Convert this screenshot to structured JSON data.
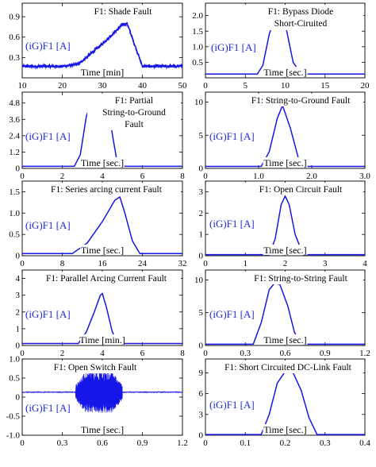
{
  "colors": {
    "line": "#1616e8",
    "ylabel": "#1f2bd6",
    "axis": "#000000",
    "background": "#ffffff"
  },
  "chart_data": [
    {
      "type": "line",
      "panel": 1,
      "title_lines": [
        "F1: Shade Fault"
      ],
      "ylabel": "(iG)F1 [A]",
      "xlabel": "Time [min]",
      "xlim": [
        10,
        50
      ],
      "ylim": [
        0,
        1.1
      ],
      "xticks": [
        "10",
        "20",
        "30",
        "40",
        "50"
      ],
      "yticks": [
        "0.3",
        "0.6",
        "0.9"
      ],
      "noisy": true,
      "noise_amplitude": 0.02,
      "x": [
        10,
        20,
        24,
        30,
        35,
        36.2,
        38,
        40,
        50
      ],
      "y": [
        0.17,
        0.17,
        0.2,
        0.5,
        0.78,
        0.8,
        0.5,
        0.17,
        0.17
      ]
    },
    {
      "type": "line",
      "panel": 2,
      "title_lines": [
        "F1: Bypass Diode",
        "Short-Ciruited"
      ],
      "ylabel": "(iG)F1 [A]",
      "xlabel": "Time [sec.]",
      "xlim": [
        0,
        20
      ],
      "ylim": [
        0,
        2.4
      ],
      "xticks": [
        "0",
        "5",
        "10",
        "15",
        "20"
      ],
      "yticks": [
        "0.5",
        "1.0",
        "1.5",
        "2.0"
      ],
      "noisy": false,
      "x": [
        0,
        6.5,
        7.2,
        8,
        9,
        9.5,
        10.2,
        11,
        12,
        20
      ],
      "y": [
        0.12,
        0.12,
        0.4,
        1.4,
        2.15,
        2.22,
        1.5,
        0.5,
        0.12,
        0.12
      ]
    },
    {
      "type": "line",
      "panel": 3,
      "title_lines": [
        "F1: Partial",
        "String-to-Ground",
        "Fault"
      ],
      "ylabel": "(iG)F1 [A]",
      "xlabel": "Time [sec.]",
      "xlim": [
        0,
        8
      ],
      "ylim": [
        0,
        5.6
      ],
      "xticks": [
        "0",
        "2",
        "4",
        "6",
        "8"
      ],
      "yticks": [
        "0",
        "1.2",
        "2.4",
        "3.6",
        "4.8"
      ],
      "noisy": false,
      "x": [
        0,
        2.6,
        2.9,
        3.2,
        3.4,
        3.5,
        4.2,
        4.3,
        4.5,
        4.7,
        5.0,
        8
      ],
      "y": [
        0.15,
        0.15,
        1.0,
        3.8,
        4.7,
        4.8,
        4.8,
        4.5,
        2.5,
        0.8,
        0.15,
        0.15
      ]
    },
    {
      "type": "line",
      "panel": 4,
      "title_lines": [
        "F1: String-to-Ground Fault"
      ],
      "ylabel": "(iG)F1 [A]",
      "xlabel": "Time [sec.]",
      "xlim": [
        0,
        3.0
      ],
      "ylim": [
        0,
        11.5
      ],
      "xticks": [
        "0",
        "1.0",
        "2.0",
        "3.0"
      ],
      "yticks": [
        "0",
        "5",
        "10"
      ],
      "noisy": false,
      "x": [
        0,
        1.05,
        1.2,
        1.35,
        1.45,
        1.6,
        1.75,
        1.9,
        3.0
      ],
      "y": [
        0.3,
        0.3,
        2.5,
        7.5,
        9.5,
        6.0,
        1.5,
        0.3,
        0.3
      ]
    },
    {
      "type": "line",
      "panel": 5,
      "title_lines": [
        "F1: Series arcing current Fault"
      ],
      "ylabel": "(iG)F1 [A]",
      "xlabel": "Time [sec.]",
      "xlim": [
        0,
        32
      ],
      "ylim": [
        0,
        1.75
      ],
      "xticks": [
        "0",
        "8",
        "16",
        "24",
        "32"
      ],
      "yticks": [
        "0",
        "0.5",
        "1.0",
        "1.5"
      ],
      "noisy": false,
      "x": [
        0,
        10,
        13,
        16,
        18.5,
        19.5,
        20.5,
        22,
        23.5,
        32
      ],
      "y": [
        0.05,
        0.05,
        0.3,
        0.8,
        1.3,
        1.38,
        1.0,
        0.35,
        0.05,
        0.05
      ]
    },
    {
      "type": "line",
      "panel": 6,
      "title_lines": [
        "F1: Open Circuit Fault"
      ],
      "ylabel": "(iG)F1 [A]",
      "xlabel": "Time [sec.]",
      "xlim": [
        0,
        4
      ],
      "ylim": [
        0,
        3.5
      ],
      "xticks": [
        "0",
        "1",
        "2",
        "3",
        "4"
      ],
      "yticks": [
        "0",
        "1",
        "2",
        "3"
      ],
      "noisy": false,
      "x": [
        0,
        1.6,
        1.75,
        1.9,
        2.0,
        2.1,
        2.25,
        2.45,
        4
      ],
      "y": [
        0.05,
        0.05,
        0.8,
        2.4,
        2.8,
        2.4,
        1.0,
        0.05,
        0.05
      ]
    },
    {
      "type": "line",
      "panel": 7,
      "title_lines": [
        "F1: Parallel Arcing Current Fault"
      ],
      "ylabel": "(iG)F1 [A]",
      "xlabel": "Time [min.]",
      "xlim": [
        0,
        8
      ],
      "ylim": [
        0,
        4.5
      ],
      "xticks": [
        "0",
        "2",
        "4",
        "6",
        "8"
      ],
      "yticks": [
        "0",
        "1",
        "2",
        "3",
        "4"
      ],
      "noisy": false,
      "x": [
        0,
        2.8,
        3.2,
        3.6,
        3.9,
        4.0,
        4.2,
        4.5,
        4.8,
        8
      ],
      "y": [
        0.12,
        0.12,
        0.8,
        2.0,
        3.0,
        3.1,
        2.3,
        0.8,
        0.12,
        0.12
      ]
    },
    {
      "type": "line",
      "panel": 8,
      "title_lines": [
        "F1: String-to-String Fault"
      ],
      "ylabel": "(iG)F1 [A]",
      "xlabel": "Time [sec.]",
      "xlim": [
        0,
        1.2
      ],
      "ylim": [
        0,
        11.5
      ],
      "xticks": [
        "0",
        "0.3",
        "0.6",
        "0.9",
        "1.2"
      ],
      "yticks": [
        "0",
        "5",
        "10"
      ],
      "noisy": false,
      "x": [
        0,
        0.36,
        0.42,
        0.48,
        0.52,
        0.56,
        0.62,
        0.67,
        0.72,
        1.2
      ],
      "y": [
        0.2,
        0.2,
        3.5,
        8.5,
        9.5,
        9.3,
        6.0,
        2.0,
        0.2,
        0.2
      ]
    },
    {
      "type": "line",
      "panel": 9,
      "title_lines": [
        "F1: Open Switch Fault"
      ],
      "ylabel": "(iG)F1 [A]",
      "xlabel": "Time [sec.]",
      "xlim": [
        0,
        1.2
      ],
      "ylim": [
        -1.0,
        1.0
      ],
      "xticks": [
        "0",
        "0.3",
        "0.6",
        "0.9",
        "1.2"
      ],
      "yticks": [
        "-1.0",
        "-0.5",
        "0",
        "0.5",
        "1.0"
      ],
      "noisy": false,
      "baseline": 0.13,
      "oscillation": {
        "start": 0.4,
        "end": 0.75,
        "amplitude": 0.55
      },
      "x": [
        0,
        0.4,
        0.75,
        1.2
      ],
      "y": [
        0.13,
        0.13,
        0.13,
        0.13
      ]
    },
    {
      "type": "line",
      "panel": 10,
      "title_lines": [
        "F1: Short Circuited DC-Link Fault"
      ],
      "ylabel": "(iG)F1 [A]",
      "xlabel": "Time [sec.]",
      "xlim": [
        0,
        0.4
      ],
      "ylim": [
        0,
        11
      ],
      "xticks": [
        "0",
        "0.1",
        "0.2",
        "0.3",
        "0.4"
      ],
      "yticks": [
        "0",
        "3",
        "6",
        "9"
      ],
      "noisy": false,
      "x": [
        0,
        0.14,
        0.16,
        0.18,
        0.2,
        0.22,
        0.24,
        0.26,
        0.28,
        0.4
      ],
      "y": [
        0.1,
        0.1,
        3.0,
        7.5,
        9.2,
        9.0,
        6.5,
        2.5,
        0.1,
        0.1
      ]
    }
  ]
}
